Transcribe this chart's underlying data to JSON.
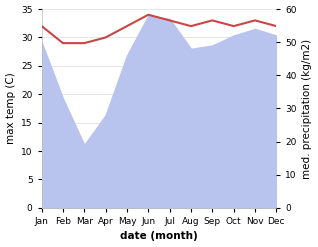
{
  "months": [
    "Jan",
    "Feb",
    "Mar",
    "Apr",
    "May",
    "Jun",
    "Jul",
    "Aug",
    "Sep",
    "Oct",
    "Nov",
    "Dec"
  ],
  "x": [
    0,
    1,
    2,
    3,
    4,
    5,
    6,
    7,
    8,
    9,
    10,
    11
  ],
  "temp": [
    32.0,
    29.0,
    29.0,
    30.0,
    32.0,
    34.0,
    33.0,
    32.0,
    33.0,
    32.0,
    33.0,
    32.0
  ],
  "precip": [
    50,
    33,
    19,
    28,
    46,
    58,
    57,
    48,
    49,
    52,
    54,
    52
  ],
  "temp_color": "#cc4444",
  "precip_fill_color": "#b8c4ee",
  "background_color": "#ffffff",
  "ylabel_left": "max temp (C)",
  "ylabel_right": "med. precipitation (kg/m2)",
  "xlabel": "date (month)",
  "ylim_left": [
    0,
    35
  ],
  "ylim_right": [
    0,
    60
  ],
  "yticks_left": [
    0,
    5,
    10,
    15,
    20,
    25,
    30,
    35
  ],
  "yticks_right": [
    0,
    10,
    20,
    30,
    40,
    50,
    60
  ],
  "label_fontsize": 7.5,
  "tick_fontsize": 6.5
}
